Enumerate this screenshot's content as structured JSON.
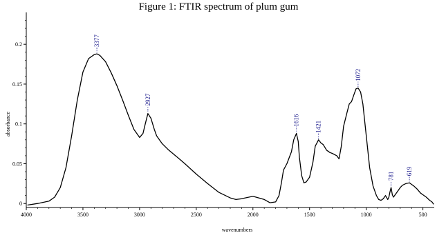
{
  "chart_data": {
    "type": "line",
    "title": "Figure 1: FTIR spectrum of plum gum",
    "xlabel": "wavenumbers",
    "ylabel": "absorbance",
    "xlim": [
      4000,
      400
    ],
    "ylim": [
      -0.005,
      0.24
    ],
    "x_reversed": true,
    "grid": false,
    "line_color": "#000000",
    "peak_label_color": "#1a1a8c",
    "x_ticks": [
      {
        "value": 4000,
        "label": "4000"
      },
      {
        "value": 3500,
        "label": "3500"
      },
      {
        "value": 3000,
        "label": "3000"
      },
      {
        "value": 2500,
        "label": "2500"
      },
      {
        "value": 2000,
        "label": "2000"
      },
      {
        "value": 1500,
        "label": "1500"
      },
      {
        "value": 1000,
        "label": "1000"
      },
      {
        "value": 500,
        "label": "500"
      }
    ],
    "y_ticks": [
      {
        "value": 0,
        "label": "0"
      },
      {
        "value": 0.05,
        "label": "0.05"
      },
      {
        "value": 0.1,
        "label": "0.1"
      },
      {
        "value": 0.15,
        "label": "0.15"
      },
      {
        "value": 0.2,
        "label": "0.2"
      }
    ],
    "peaks": [
      {
        "x": 3377,
        "y": 0.188,
        "label": "3377"
      },
      {
        "x": 2927,
        "y": 0.114,
        "label": "2927"
      },
      {
        "x": 1616,
        "y": 0.088,
        "label": "1616"
      },
      {
        "x": 1421,
        "y": 0.08,
        "label": "1421"
      },
      {
        "x": 1072,
        "y": 0.145,
        "label": "1072"
      },
      {
        "x": 781,
        "y": 0.02,
        "label": "781"
      },
      {
        "x": 619,
        "y": 0.026,
        "label": "619"
      }
    ],
    "series": [
      {
        "x": [
          3990,
          3900,
          3800,
          3750,
          3700,
          3650,
          3600,
          3550,
          3500,
          3450,
          3400,
          3377,
          3350,
          3300,
          3250,
          3200,
          3150,
          3100,
          3050,
          3000,
          2970,
          2950,
          2927,
          2900,
          2870,
          2850,
          2800,
          2750,
          2700,
          2650,
          2600,
          2500,
          2400,
          2300,
          2200,
          2150,
          2100,
          2000,
          1900,
          1850,
          1800,
          1770,
          1750,
          1730,
          1700,
          1660,
          1640,
          1616,
          1600,
          1590,
          1570,
          1550,
          1530,
          1500,
          1470,
          1450,
          1421,
          1400,
          1380,
          1350,
          1320,
          1300,
          1260,
          1240,
          1220,
          1200,
          1170,
          1150,
          1130,
          1110,
          1090,
          1072,
          1050,
          1030,
          1000,
          970,
          940,
          910,
          890,
          870,
          850,
          830,
          810,
          800,
          790,
          781,
          770,
          760,
          740,
          720,
          700,
          680,
          650,
          619,
          600,
          580,
          550,
          520,
          500,
          470,
          440,
          420,
          405
        ],
        "y": [
          -0.002,
          0.0,
          0.003,
          0.008,
          0.02,
          0.045,
          0.085,
          0.13,
          0.165,
          0.182,
          0.187,
          0.188,
          0.186,
          0.178,
          0.164,
          0.148,
          0.13,
          0.111,
          0.093,
          0.083,
          0.088,
          0.1,
          0.113,
          0.107,
          0.093,
          0.085,
          0.075,
          0.068,
          0.062,
          0.056,
          0.05,
          0.037,
          0.025,
          0.014,
          0.007,
          0.005,
          0.006,
          0.009,
          0.005,
          0.001,
          0.002,
          0.01,
          0.025,
          0.042,
          0.05,
          0.065,
          0.08,
          0.088,
          0.078,
          0.058,
          0.035,
          0.026,
          0.027,
          0.033,
          0.052,
          0.072,
          0.08,
          0.076,
          0.074,
          0.067,
          0.064,
          0.063,
          0.06,
          0.056,
          0.072,
          0.097,
          0.114,
          0.125,
          0.128,
          0.136,
          0.144,
          0.145,
          0.14,
          0.125,
          0.085,
          0.045,
          0.022,
          0.01,
          0.005,
          0.004,
          0.006,
          0.01,
          0.005,
          0.008,
          0.015,
          0.02,
          0.011,
          0.008,
          0.012,
          0.016,
          0.02,
          0.023,
          0.025,
          0.026,
          0.024,
          0.022,
          0.018,
          0.013,
          0.011,
          0.008,
          0.004,
          0.002,
          -0.001
        ]
      }
    ]
  }
}
